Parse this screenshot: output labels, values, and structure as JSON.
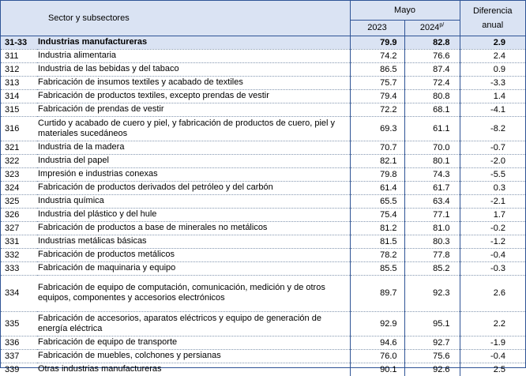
{
  "header": {
    "sector_label": "Sector y subsectores",
    "may_label": "Mayo",
    "diff_label_line1": "Diferencia",
    "diff_label_line2": "anual",
    "year1": "2023",
    "year2": "2024",
    "year2_sup": "p/"
  },
  "total": {
    "code": "31-33",
    "name": "Industrias manufactureras",
    "v2023": "79.9",
    "v2024": "82.8",
    "diff": "2.9"
  },
  "rows": [
    {
      "code": "311",
      "name": "Industria alimentaria",
      "v2023": "74.2",
      "v2024": "76.6",
      "diff": "2.4",
      "lines": 1
    },
    {
      "code": "312",
      "name": "Industria de las bebidas y del tabaco",
      "v2023": "86.5",
      "v2024": "87.4",
      "diff": "0.9",
      "lines": 1
    },
    {
      "code": "313",
      "name": "Fabricación de insumos textiles y acabado de textiles",
      "v2023": "75.7",
      "v2024": "72.4",
      "diff": "-3.3",
      "lines": 1
    },
    {
      "code": "314",
      "name": "Fabricación de productos textiles, excepto prendas de vestir",
      "v2023": "79.4",
      "v2024": "80.8",
      "diff": "1.4",
      "lines": 1
    },
    {
      "code": "315",
      "name": "Fabricación de prendas de vestir",
      "v2023": "72.2",
      "v2024": "68.1",
      "diff": "-4.1",
      "lines": 1
    },
    {
      "code": "316",
      "name": "Curtido y acabado de cuero y piel, y fabricación de productos de cuero, piel y materiales sucedáneos",
      "v2023": "69.3",
      "v2024": "61.1",
      "diff": "-8.2",
      "lines": 2
    },
    {
      "code": "321",
      "name": "Industria de la madera",
      "v2023": "70.7",
      "v2024": "70.0",
      "diff": "-0.7",
      "lines": 1
    },
    {
      "code": "322",
      "name": "Industria del papel",
      "v2023": "82.1",
      "v2024": "80.1",
      "diff": "-2.0",
      "lines": 1
    },
    {
      "code": "323",
      "name": "Impresión e industrias conexas",
      "v2023": "79.8",
      "v2024": "74.3",
      "diff": "-5.5",
      "lines": 1
    },
    {
      "code": "324",
      "name": "Fabricación de productos derivados del petróleo y del carbón",
      "v2023": "61.4",
      "v2024": "61.7",
      "diff": "0.3",
      "lines": 1
    },
    {
      "code": "325",
      "name": "Industria química",
      "v2023": "65.5",
      "v2024": "63.4",
      "diff": "-2.1",
      "lines": 1
    },
    {
      "code": "326",
      "name": "Industria del plástico y del hule",
      "v2023": "75.4",
      "v2024": "77.1",
      "diff": "1.7",
      "lines": 1
    },
    {
      "code": "327",
      "name": "Fabricación de productos a base de minerales no metálicos",
      "v2023": "81.2",
      "v2024": "81.0",
      "diff": "-0.2",
      "lines": 1
    },
    {
      "code": "331",
      "name": "Industrias metálicas básicas",
      "v2023": "81.5",
      "v2024": "80.3",
      "diff": "-1.2",
      "lines": 1
    },
    {
      "code": "332",
      "name": "Fabricación de productos metálicos",
      "v2023": "78.2",
      "v2024": "77.8",
      "diff": "-0.4",
      "lines": 1
    },
    {
      "code": "333",
      "name": "Fabricación de maquinaria y equipo",
      "v2023": "85.5",
      "v2024": "85.2",
      "diff": "-0.3",
      "lines": 1
    },
    {
      "code": "334",
      "name": "Fabricación de equipo de computación, comunicación, medición y de otros equipos, componentes y accesorios electrónicos",
      "v2023": "89.7",
      "v2024": "92.3",
      "diff": "2.6",
      "lines": 3
    },
    {
      "code": "335",
      "name": "Fabricación de accesorios, aparatos eléctricos y equipo de generación de energía eléctrica",
      "v2023": "92.9",
      "v2024": "95.1",
      "diff": "2.2",
      "lines": 2
    },
    {
      "code": "336",
      "name": "Fabricación de equipo de transporte",
      "v2023": "94.6",
      "v2024": "92.7",
      "diff": "-1.9",
      "lines": 1
    },
    {
      "code": "337",
      "name": "Fabricación de muebles, colchones y persianas",
      "v2023": "76.0",
      "v2024": "75.6",
      "diff": "-0.4",
      "lines": 1
    },
    {
      "code": "339",
      "name": "Otras industrias manufactureras",
      "v2023": "90.1",
      "v2024": "92.6",
      "diff": "2.5",
      "lines": 1
    }
  ]
}
